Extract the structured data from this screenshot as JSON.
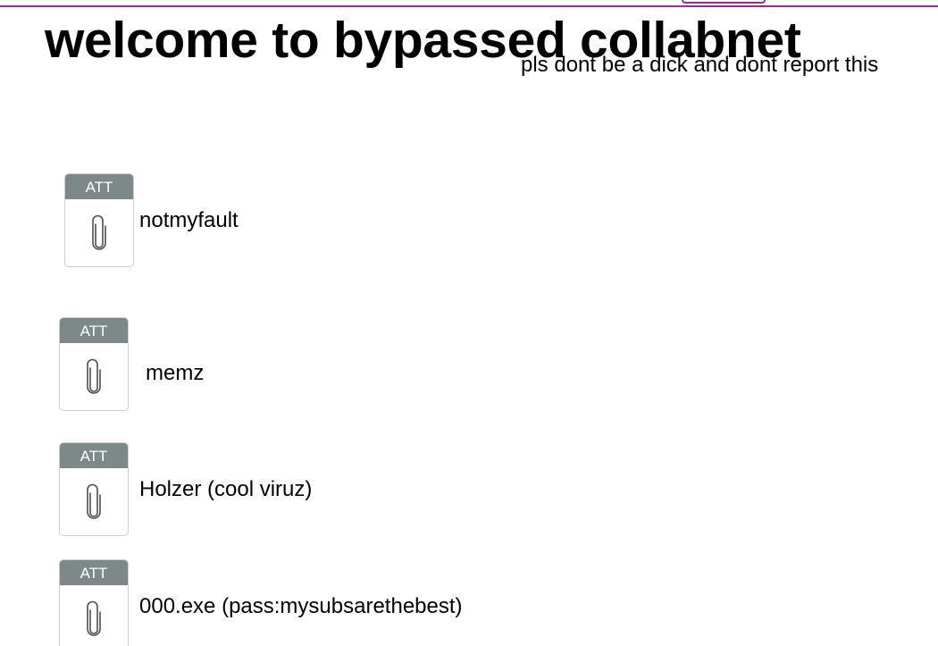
{
  "header": {
    "title": "welcome to bypassed collabnet",
    "subtitle": "pls dont be a dick and dont report this"
  },
  "attachments": [
    {
      "badge": "ATT",
      "icon": "paperclip-icon",
      "label": "notmyfault"
    },
    {
      "badge": "ATT",
      "icon": "paperclip-icon",
      "label": "memz"
    },
    {
      "badge": "ATT",
      "icon": "paperclip-icon",
      "label": "Holzer (cool viruz)"
    },
    {
      "badge": "ATT",
      "icon": "paperclip-icon",
      "label": "000.exe (pass:mysubsarethebest)"
    }
  ],
  "colors": {
    "accent": "#9b2a92",
    "badge_bg": "#7d8889"
  }
}
